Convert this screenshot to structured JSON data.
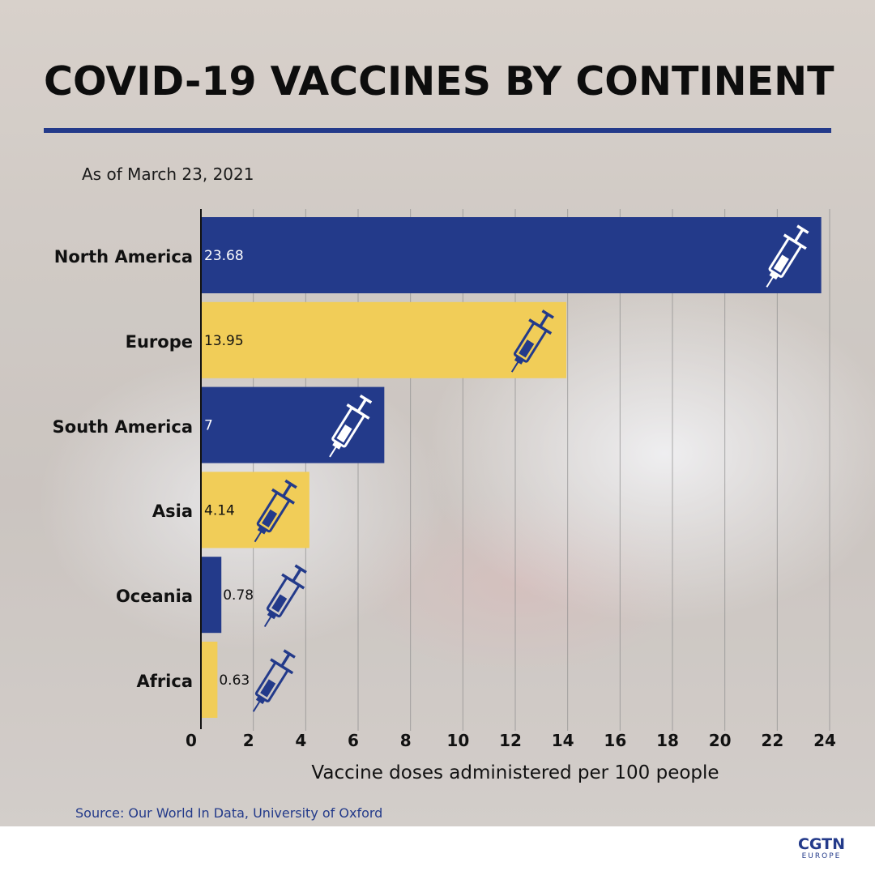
{
  "title": "COVID-19 VACCINES BY CONTINENT",
  "subtitle": "As of March 23, 2021",
  "source": "Source: Our World In Data, University of Oxford",
  "logo": {
    "main": "CGTN",
    "sub": "EUROPE"
  },
  "colors": {
    "navy": "#233a8a",
    "yellow": "#f1cd58",
    "title_rule": "#233a8a"
  },
  "chart_data": {
    "type": "bar",
    "orientation": "horizontal",
    "categories": [
      "North America",
      "Europe",
      "South America",
      "Asia",
      "Oceania",
      "Africa"
    ],
    "values": [
      23.68,
      13.95,
      7,
      4.14,
      0.78,
      0.63
    ],
    "value_labels": [
      "23.68",
      "13.95",
      "7",
      "4.14",
      "0.78",
      "0.63"
    ],
    "bar_colors": [
      "#233a8a",
      "#f1cd58",
      "#233a8a",
      "#f1cd58",
      "#233a8a",
      "#f1cd58"
    ],
    "xlabel": "Vaccine doses administered per 100 people",
    "ylabel": "",
    "xlim": [
      0,
      24
    ],
    "xticks": [
      "0",
      "2",
      "4",
      "6",
      "8",
      "10",
      "12",
      "14",
      "16",
      "18",
      "20",
      "22",
      "24"
    ],
    "grid": "vertical",
    "bar_icon": "syringe-icon"
  }
}
